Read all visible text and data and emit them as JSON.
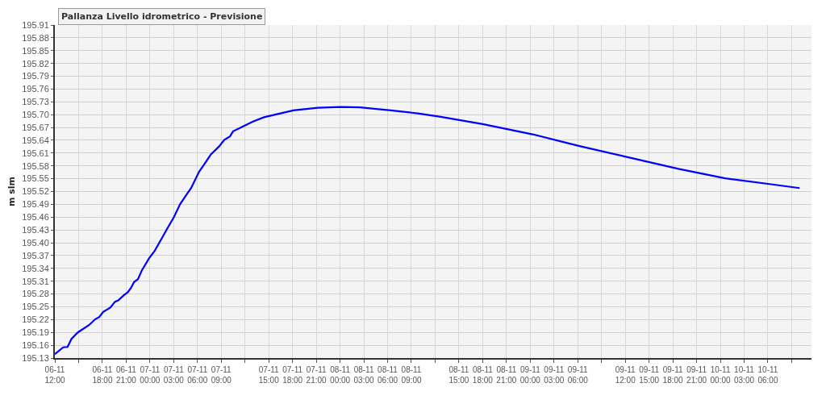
{
  "chart_data": {
    "type": "line",
    "title": "Pallanza Livello idrometrico - Previsione",
    "ylabel": "m slm",
    "x": [
      "--11-06T12:00",
      "--11-06T13:03",
      "--11-06T13:36",
      "--11-06T14:06",
      "--11-06T14:54",
      "--11-06T16:18",
      "--11-06T17:06",
      "--11-06T17:36",
      "--11-06T18:06",
      "--11-06T19:00",
      "--11-06T19:36",
      "--11-06T20:00",
      "--11-06T20:42",
      "--11-06T21:12",
      "--11-06T21:36",
      "--11-06T22:00",
      "--11-06T22:30",
      "--11-06T23:00",
      "--11-06T23:54",
      "--11-07T00:36",
      "--11-07T01:24",
      "--11-07T02:18",
      "--11-07T03:00",
      "--11-07T03:48",
      "--11-07T04:42",
      "--11-07T05:12",
      "--11-07T06:12",
      "--11-07T06:54",
      "--11-07T07:42",
      "--11-07T08:42",
      "--11-07T09:24",
      "--11-07T10:06",
      "--11-07T10:30",
      "--11-07T11:36",
      "--11-07T13:00",
      "--11-07T14:24",
      "--11-07T18:06",
      "--11-07T21:12",
      "--11-08T00:06",
      "--11-08T02:30",
      "--11-08T06:24",
      "--11-08T09:48",
      "--11-08T12:42",
      "--11-08T18:00",
      "--11-09T00:18",
      "--11-09T06:06",
      "--11-09T12:24",
      "--11-09T18:42",
      "--11-10T00:36",
      "--11-10T06:24",
      "--11-10T10:00"
    ],
    "series": [
      {
        "color": "#0000ff",
        "values": [
          195.139,
          195.155,
          195.156,
          195.175,
          195.19,
          195.207,
          195.221,
          195.226,
          195.238,
          195.248,
          195.262,
          195.265,
          195.277,
          195.284,
          195.294,
          195.308,
          195.315,
          195.336,
          195.364,
          195.381,
          195.407,
          195.437,
          195.459,
          195.49,
          195.515,
          195.528,
          195.566,
          195.585,
          195.607,
          195.625,
          195.641,
          195.649,
          195.661,
          195.671,
          195.684,
          195.694,
          195.71,
          195.716,
          195.718,
          195.717,
          195.71,
          195.703,
          195.695,
          195.678,
          195.654,
          195.627,
          195.6,
          195.573,
          195.551,
          195.537,
          195.528
        ]
      }
    ],
    "xlim": [
      "--11-06T12:00",
      "--11-10T11:30"
    ],
    "xticks": [
      {
        "value": "--11-06T12:00",
        "label": "06-11\n12:00"
      },
      {
        "value": "--11-06T15:00",
        "label": null
      },
      {
        "value": "--11-06T18:00",
        "label": "06-11\n18:00"
      },
      {
        "value": "--11-06T21:00",
        "label": "06-11\n21:00"
      },
      {
        "value": "--11-07T00:00",
        "label": "07-11\n00:00"
      },
      {
        "value": "--11-07T03:00",
        "label": "07-11\n03:00"
      },
      {
        "value": "--11-07T06:00",
        "label": "07-11\n06:00"
      },
      {
        "value": "--11-07T09:00",
        "label": "07-11\n09:00"
      },
      {
        "value": "--11-07T12:00",
        "label": null
      },
      {
        "value": "--11-07T15:00",
        "label": "07-11\n15:00"
      },
      {
        "value": "--11-07T18:00",
        "label": "07-11\n18:00"
      },
      {
        "value": "--11-07T21:00",
        "label": "07-11\n21:00"
      },
      {
        "value": "--11-08T00:00",
        "label": "08-11\n00:00"
      },
      {
        "value": "--11-08T03:00",
        "label": "08-11\n03:00"
      },
      {
        "value": "--11-08T06:00",
        "label": "08-11\n06:00"
      },
      {
        "value": "--11-08T09:00",
        "label": "08-11\n09:00"
      },
      {
        "value": "--11-08T12:00",
        "label": null
      },
      {
        "value": "--11-08T15:00",
        "label": "08-11\n15:00"
      },
      {
        "value": "--11-08T18:00",
        "label": "08-11\n18:00"
      },
      {
        "value": "--11-08T21:00",
        "label": "08-11\n21:00"
      },
      {
        "value": "--11-09T00:00",
        "label": "09-11\n00:00"
      },
      {
        "value": "--11-09T03:00",
        "label": "09-11\n03:00"
      },
      {
        "value": "--11-09T06:00",
        "label": "09-11\n06:00"
      },
      {
        "value": "--11-09T09:00",
        "label": null
      },
      {
        "value": "--11-09T12:00",
        "label": "09-11\n12:00"
      },
      {
        "value": "--11-09T15:00",
        "label": "09-11\n15:00"
      },
      {
        "value": "--11-09T18:00",
        "label": "09-11\n18:00"
      },
      {
        "value": "--11-09T21:00",
        "label": "09-11\n21:00"
      },
      {
        "value": "--11-10T00:00",
        "label": "10-11\n00:00"
      },
      {
        "value": "--11-10T03:00",
        "label": "10-11\n03:00"
      },
      {
        "value": "--11-10T06:00",
        "label": "10-11\n06:00"
      },
      {
        "value": "--11-10T09:00",
        "label": null
      }
    ],
    "ylim": [
      195.13,
      195.91
    ],
    "yticks": [
      195.13,
      195.16,
      195.19,
      195.22,
      195.25,
      195.28,
      195.31,
      195.34,
      195.37,
      {
        "value": 195.4,
        "label": "195.40"
      },
      195.43,
      195.46,
      195.49,
      195.52,
      195.55,
      195.58,
      195.61,
      195.64,
      195.67,
      {
        "value": 195.7,
        "label": "195.70"
      },
      195.73,
      195.76,
      195.79,
      195.82,
      195.85,
      195.88,
      195.91
    ],
    "grid": true,
    "marker": "none",
    "line_style": "solid"
  }
}
